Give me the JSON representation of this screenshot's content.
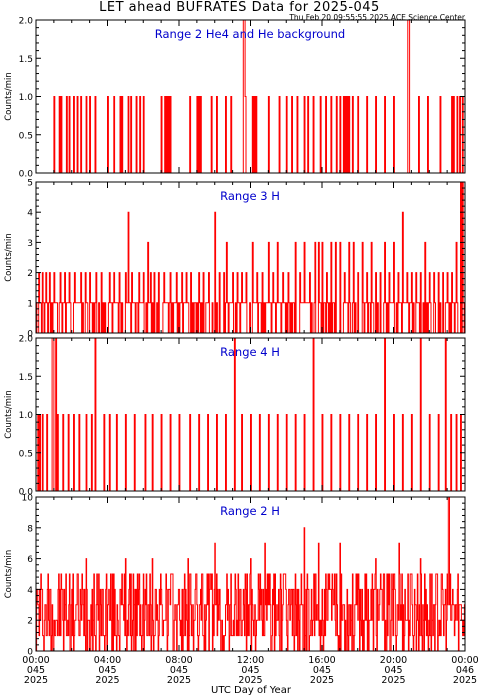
{
  "title": "LET ahead BUFRATES Data for 2025-045",
  "stamp": "Thu Feb 20 09:55:55 2025 ACE Science Center",
  "xlabel": "UTC Day of Year",
  "colors": {
    "data": "#ff0000",
    "panel_title": "#0000cc",
    "axis": "#000000"
  },
  "chart_data": [
    {
      "type": "line",
      "title": "Range 2 He4 and He background",
      "ylabel": "Counts/min",
      "ylim": [
        0,
        2.0
      ],
      "yticks": [
        0.0,
        0.5,
        1.0,
        1.5,
        2.0
      ],
      "ytick_labels": [
        "0.0",
        "0.5",
        "1.0",
        "1.5",
        "2.0"
      ],
      "events": [
        {
          "t": 60,
          "v": 1
        },
        {
          "t": 78,
          "v": 1
        },
        {
          "t": 84,
          "v": 1
        },
        {
          "t": 101,
          "v": 1
        },
        {
          "t": 110,
          "v": 1
        },
        {
          "t": 126,
          "v": 1
        },
        {
          "t": 138,
          "v": 1
        },
        {
          "t": 150,
          "v": 1
        },
        {
          "t": 168,
          "v": 1
        },
        {
          "t": 180,
          "v": 1
        },
        {
          "t": 198,
          "v": 1
        },
        {
          "t": 240,
          "v": 1
        },
        {
          "t": 262,
          "v": 1
        },
        {
          "t": 282,
          "v": 1
        },
        {
          "t": 288,
          "v": 1
        },
        {
          "t": 310,
          "v": 1
        },
        {
          "t": 318,
          "v": 1
        },
        {
          "t": 336,
          "v": 1
        },
        {
          "t": 348,
          "v": 1
        },
        {
          "t": 360,
          "v": 1
        },
        {
          "t": 420,
          "v": 1
        },
        {
          "t": 432,
          "v": 1
        },
        {
          "t": 438,
          "v": 1
        },
        {
          "t": 444,
          "v": 1
        },
        {
          "t": 450,
          "v": 1
        },
        {
          "t": 516,
          "v": 1
        },
        {
          "t": 540,
          "v": 1
        },
        {
          "t": 546,
          "v": 1
        },
        {
          "t": 552,
          "v": 1
        },
        {
          "t": 588,
          "v": 1
        },
        {
          "t": 606,
          "v": 1
        },
        {
          "t": 636,
          "v": 1
        },
        {
          "t": 654,
          "v": 1
        },
        {
          "t": 696,
          "v": 2
        },
        {
          "t": 699,
          "v": 2
        },
        {
          "t": 702,
          "v": 1
        },
        {
          "t": 726,
          "v": 1
        },
        {
          "t": 732,
          "v": 1
        },
        {
          "t": 738,
          "v": 1
        },
        {
          "t": 780,
          "v": 1
        },
        {
          "t": 816,
          "v": 1
        },
        {
          "t": 840,
          "v": 1
        },
        {
          "t": 858,
          "v": 1
        },
        {
          "t": 876,
          "v": 1
        },
        {
          "t": 900,
          "v": 1
        },
        {
          "t": 912,
          "v": 1
        },
        {
          "t": 930,
          "v": 1
        },
        {
          "t": 954,
          "v": 1
        },
        {
          "t": 972,
          "v": 1
        },
        {
          "t": 990,
          "v": 1
        },
        {
          "t": 1008,
          "v": 1
        },
        {
          "t": 1020,
          "v": 1
        },
        {
          "t": 1032,
          "v": 1
        },
        {
          "t": 1038,
          "v": 1
        },
        {
          "t": 1044,
          "v": 1
        },
        {
          "t": 1050,
          "v": 1
        },
        {
          "t": 1062,
          "v": 1
        },
        {
          "t": 1080,
          "v": 1
        },
        {
          "t": 1110,
          "v": 1
        },
        {
          "t": 1140,
          "v": 1
        },
        {
          "t": 1170,
          "v": 1
        },
        {
          "t": 1200,
          "v": 1
        },
        {
          "t": 1248,
          "v": 2
        },
        {
          "t": 1251,
          "v": 2
        },
        {
          "t": 1284,
          "v": 1
        },
        {
          "t": 1314,
          "v": 1
        },
        {
          "t": 1356,
          "v": 1
        },
        {
          "t": 1395,
          "v": 1
        },
        {
          "t": 1402,
          "v": 1
        },
        {
          "t": 1413,
          "v": 1
        },
        {
          "t": 1422,
          "v": 1
        },
        {
          "t": 1432,
          "v": 1
        }
      ]
    },
    {
      "type": "line",
      "title": "Range 3 H",
      "ylabel": "Counts/min",
      "ylim": [
        0,
        5
      ],
      "yticks": [
        0,
        1,
        2,
        3,
        4,
        5
      ],
      "ytick_labels": [
        "0",
        "1",
        "2",
        "3",
        "4",
        "5"
      ],
      "baseline": "alternating 0-1",
      "events": [
        {
          "t": 8,
          "v": 2
        },
        {
          "t": 20,
          "v": 2
        },
        {
          "t": 32,
          "v": 2
        },
        {
          "t": 45,
          "v": 2
        },
        {
          "t": 60,
          "v": 2
        },
        {
          "t": 80,
          "v": 2
        },
        {
          "t": 95,
          "v": 2
        },
        {
          "t": 110,
          "v": 2
        },
        {
          "t": 130,
          "v": 2
        },
        {
          "t": 150,
          "v": 2
        },
        {
          "t": 165,
          "v": 2
        },
        {
          "t": 180,
          "v": 2
        },
        {
          "t": 200,
          "v": 2
        },
        {
          "t": 220,
          "v": 2
        },
        {
          "t": 245,
          "v": 2
        },
        {
          "t": 262,
          "v": 2
        },
        {
          "t": 280,
          "v": 2
        },
        {
          "t": 300,
          "v": 2
        },
        {
          "t": 310,
          "v": 4
        },
        {
          "t": 320,
          "v": 2
        },
        {
          "t": 345,
          "v": 2
        },
        {
          "t": 360,
          "v": 2
        },
        {
          "t": 375,
          "v": 3
        },
        {
          "t": 385,
          "v": 2
        },
        {
          "t": 395,
          "v": 2
        },
        {
          "t": 410,
          "v": 2
        },
        {
          "t": 430,
          "v": 2
        },
        {
          "t": 450,
          "v": 2
        },
        {
          "t": 470,
          "v": 2
        },
        {
          "t": 490,
          "v": 2
        },
        {
          "t": 505,
          "v": 2
        },
        {
          "t": 520,
          "v": 2
        },
        {
          "t": 545,
          "v": 2
        },
        {
          "t": 560,
          "v": 2
        },
        {
          "t": 580,
          "v": 2
        },
        {
          "t": 600,
          "v": 4
        },
        {
          "t": 615,
          "v": 2
        },
        {
          "t": 630,
          "v": 2
        },
        {
          "t": 640,
          "v": 3
        },
        {
          "t": 660,
          "v": 2
        },
        {
          "t": 675,
          "v": 2
        },
        {
          "t": 690,
          "v": 2
        },
        {
          "t": 705,
          "v": 2
        },
        {
          "t": 725,
          "v": 3
        },
        {
          "t": 740,
          "v": 2
        },
        {
          "t": 760,
          "v": 2
        },
        {
          "t": 780,
          "v": 3
        },
        {
          "t": 795,
          "v": 2
        },
        {
          "t": 810,
          "v": 3
        },
        {
          "t": 828,
          "v": 2
        },
        {
          "t": 845,
          "v": 2
        },
        {
          "t": 870,
          "v": 3
        },
        {
          "t": 885,
          "v": 2
        },
        {
          "t": 900,
          "v": 3
        },
        {
          "t": 918,
          "v": 2
        },
        {
          "t": 935,
          "v": 3
        },
        {
          "t": 948,
          "v": 3
        },
        {
          "t": 960,
          "v": 3
        },
        {
          "t": 975,
          "v": 2
        },
        {
          "t": 990,
          "v": 3
        },
        {
          "t": 1005,
          "v": 3
        },
        {
          "t": 1020,
          "v": 3
        },
        {
          "t": 1035,
          "v": 2
        },
        {
          "t": 1050,
          "v": 3
        },
        {
          "t": 1065,
          "v": 3
        },
        {
          "t": 1080,
          "v": 2
        },
        {
          "t": 1095,
          "v": 3
        },
        {
          "t": 1110,
          "v": 2
        },
        {
          "t": 1125,
          "v": 3
        },
        {
          "t": 1140,
          "v": 2
        },
        {
          "t": 1155,
          "v": 2
        },
        {
          "t": 1170,
          "v": 3
        },
        {
          "t": 1185,
          "v": 2
        },
        {
          "t": 1200,
          "v": 3
        },
        {
          "t": 1215,
          "v": 2
        },
        {
          "t": 1230,
          "v": 4
        },
        {
          "t": 1245,
          "v": 2
        },
        {
          "t": 1260,
          "v": 2
        },
        {
          "t": 1275,
          "v": 2
        },
        {
          "t": 1290,
          "v": 2
        },
        {
          "t": 1305,
          "v": 3
        },
        {
          "t": 1320,
          "v": 2
        },
        {
          "t": 1335,
          "v": 2
        },
        {
          "t": 1350,
          "v": 2
        },
        {
          "t": 1365,
          "v": 2
        },
        {
          "t": 1380,
          "v": 2
        },
        {
          "t": 1395,
          "v": 2
        },
        {
          "t": 1410,
          "v": 3
        },
        {
          "t": 1425,
          "v": 5
        },
        {
          "t": 1432,
          "v": 5
        }
      ]
    },
    {
      "type": "line",
      "title": "Range 4 H",
      "ylabel": "Counts/min",
      "ylim": [
        0,
        2.0
      ],
      "yticks": [
        0.0,
        0.5,
        1.0,
        1.5,
        2.0
      ],
      "ytick_labels": [
        "0.0",
        "0.5",
        "1.0",
        "1.5",
        "2.0"
      ],
      "events": [
        {
          "t": 5,
          "v": 1
        },
        {
          "t": 12,
          "v": 1
        },
        {
          "t": 20,
          "v": 1
        },
        {
          "t": 36,
          "v": 1
        },
        {
          "t": 54,
          "v": 2
        },
        {
          "t": 57,
          "v": 2
        },
        {
          "t": 66,
          "v": 2
        },
        {
          "t": 72,
          "v": 1
        },
        {
          "t": 90,
          "v": 1
        },
        {
          "t": 108,
          "v": 1
        },
        {
          "t": 126,
          "v": 1
        },
        {
          "t": 144,
          "v": 1
        },
        {
          "t": 168,
          "v": 1
        },
        {
          "t": 186,
          "v": 1
        },
        {
          "t": 198,
          "v": 2
        },
        {
          "t": 228,
          "v": 1
        },
        {
          "t": 246,
          "v": 1
        },
        {
          "t": 270,
          "v": 1
        },
        {
          "t": 300,
          "v": 1
        },
        {
          "t": 330,
          "v": 1
        },
        {
          "t": 366,
          "v": 1
        },
        {
          "t": 390,
          "v": 1
        },
        {
          "t": 420,
          "v": 1
        },
        {
          "t": 450,
          "v": 1
        },
        {
          "t": 480,
          "v": 1
        },
        {
          "t": 516,
          "v": 1
        },
        {
          "t": 546,
          "v": 1
        },
        {
          "t": 576,
          "v": 1
        },
        {
          "t": 606,
          "v": 1
        },
        {
          "t": 636,
          "v": 1
        },
        {
          "t": 666,
          "v": 2
        },
        {
          "t": 690,
          "v": 1
        },
        {
          "t": 720,
          "v": 1
        },
        {
          "t": 750,
          "v": 1
        },
        {
          "t": 780,
          "v": 1
        },
        {
          "t": 810,
          "v": 1
        },
        {
          "t": 840,
          "v": 1
        },
        {
          "t": 870,
          "v": 1
        },
        {
          "t": 900,
          "v": 1
        },
        {
          "t": 930,
          "v": 2
        },
        {
          "t": 960,
          "v": 1
        },
        {
          "t": 990,
          "v": 1
        },
        {
          "t": 1020,
          "v": 1
        },
        {
          "t": 1050,
          "v": 1
        },
        {
          "t": 1080,
          "v": 1
        },
        {
          "t": 1110,
          "v": 1
        },
        {
          "t": 1140,
          "v": 1
        },
        {
          "t": 1170,
          "v": 2
        },
        {
          "t": 1200,
          "v": 1
        },
        {
          "t": 1230,
          "v": 1
        },
        {
          "t": 1260,
          "v": 1
        },
        {
          "t": 1290,
          "v": 2
        },
        {
          "t": 1320,
          "v": 1
        },
        {
          "t": 1350,
          "v": 1
        },
        {
          "t": 1374,
          "v": 2
        },
        {
          "t": 1392,
          "v": 1
        },
        {
          "t": 1410,
          "v": 1
        },
        {
          "t": 1425,
          "v": 1
        }
      ]
    },
    {
      "type": "line",
      "title": "Range 2 H",
      "ylabel": "Counts/min",
      "ylim": [
        0,
        10
      ],
      "yticks": [
        0,
        2,
        4,
        6,
        8,
        10
      ],
      "ytick_labels": [
        "0",
        "2",
        "4",
        "6",
        "8",
        "10"
      ],
      "noise": {
        "typical_min": 0,
        "typical_max": 5,
        "peaks": [
          {
            "t": 168,
            "v": 6
          },
          {
            "t": 300,
            "v": 6
          },
          {
            "t": 390,
            "v": 6
          },
          {
            "t": 510,
            "v": 6
          },
          {
            "t": 600,
            "v": 7
          },
          {
            "t": 720,
            "v": 6
          },
          {
            "t": 768,
            "v": 7
          },
          {
            "t": 900,
            "v": 8
          },
          {
            "t": 948,
            "v": 7
          },
          {
            "t": 1020,
            "v": 7
          },
          {
            "t": 1140,
            "v": 6
          },
          {
            "t": 1218,
            "v": 7
          },
          {
            "t": 1290,
            "v": 6
          },
          {
            "t": 1385,
            "v": 10
          }
        ]
      }
    }
  ],
  "x_axis": {
    "range_minutes": [
      0,
      1440
    ],
    "ticks": [
      {
        "minutes": 0,
        "time": "00:00",
        "doy": "045",
        "year": "2025"
      },
      {
        "minutes": 240,
        "time": "04:00",
        "doy": "045",
        "year": "2025"
      },
      {
        "minutes": 480,
        "time": "08:00",
        "doy": "045",
        "year": "2025"
      },
      {
        "minutes": 720,
        "time": "12:00",
        "doy": "045",
        "year": "2025"
      },
      {
        "minutes": 960,
        "time": "16:00",
        "doy": "045",
        "year": "2025"
      },
      {
        "minutes": 1200,
        "time": "20:00",
        "doy": "045",
        "year": "2025"
      },
      {
        "minutes": 1440,
        "time": "00:00",
        "doy": "046",
        "year": "2025"
      }
    ]
  }
}
